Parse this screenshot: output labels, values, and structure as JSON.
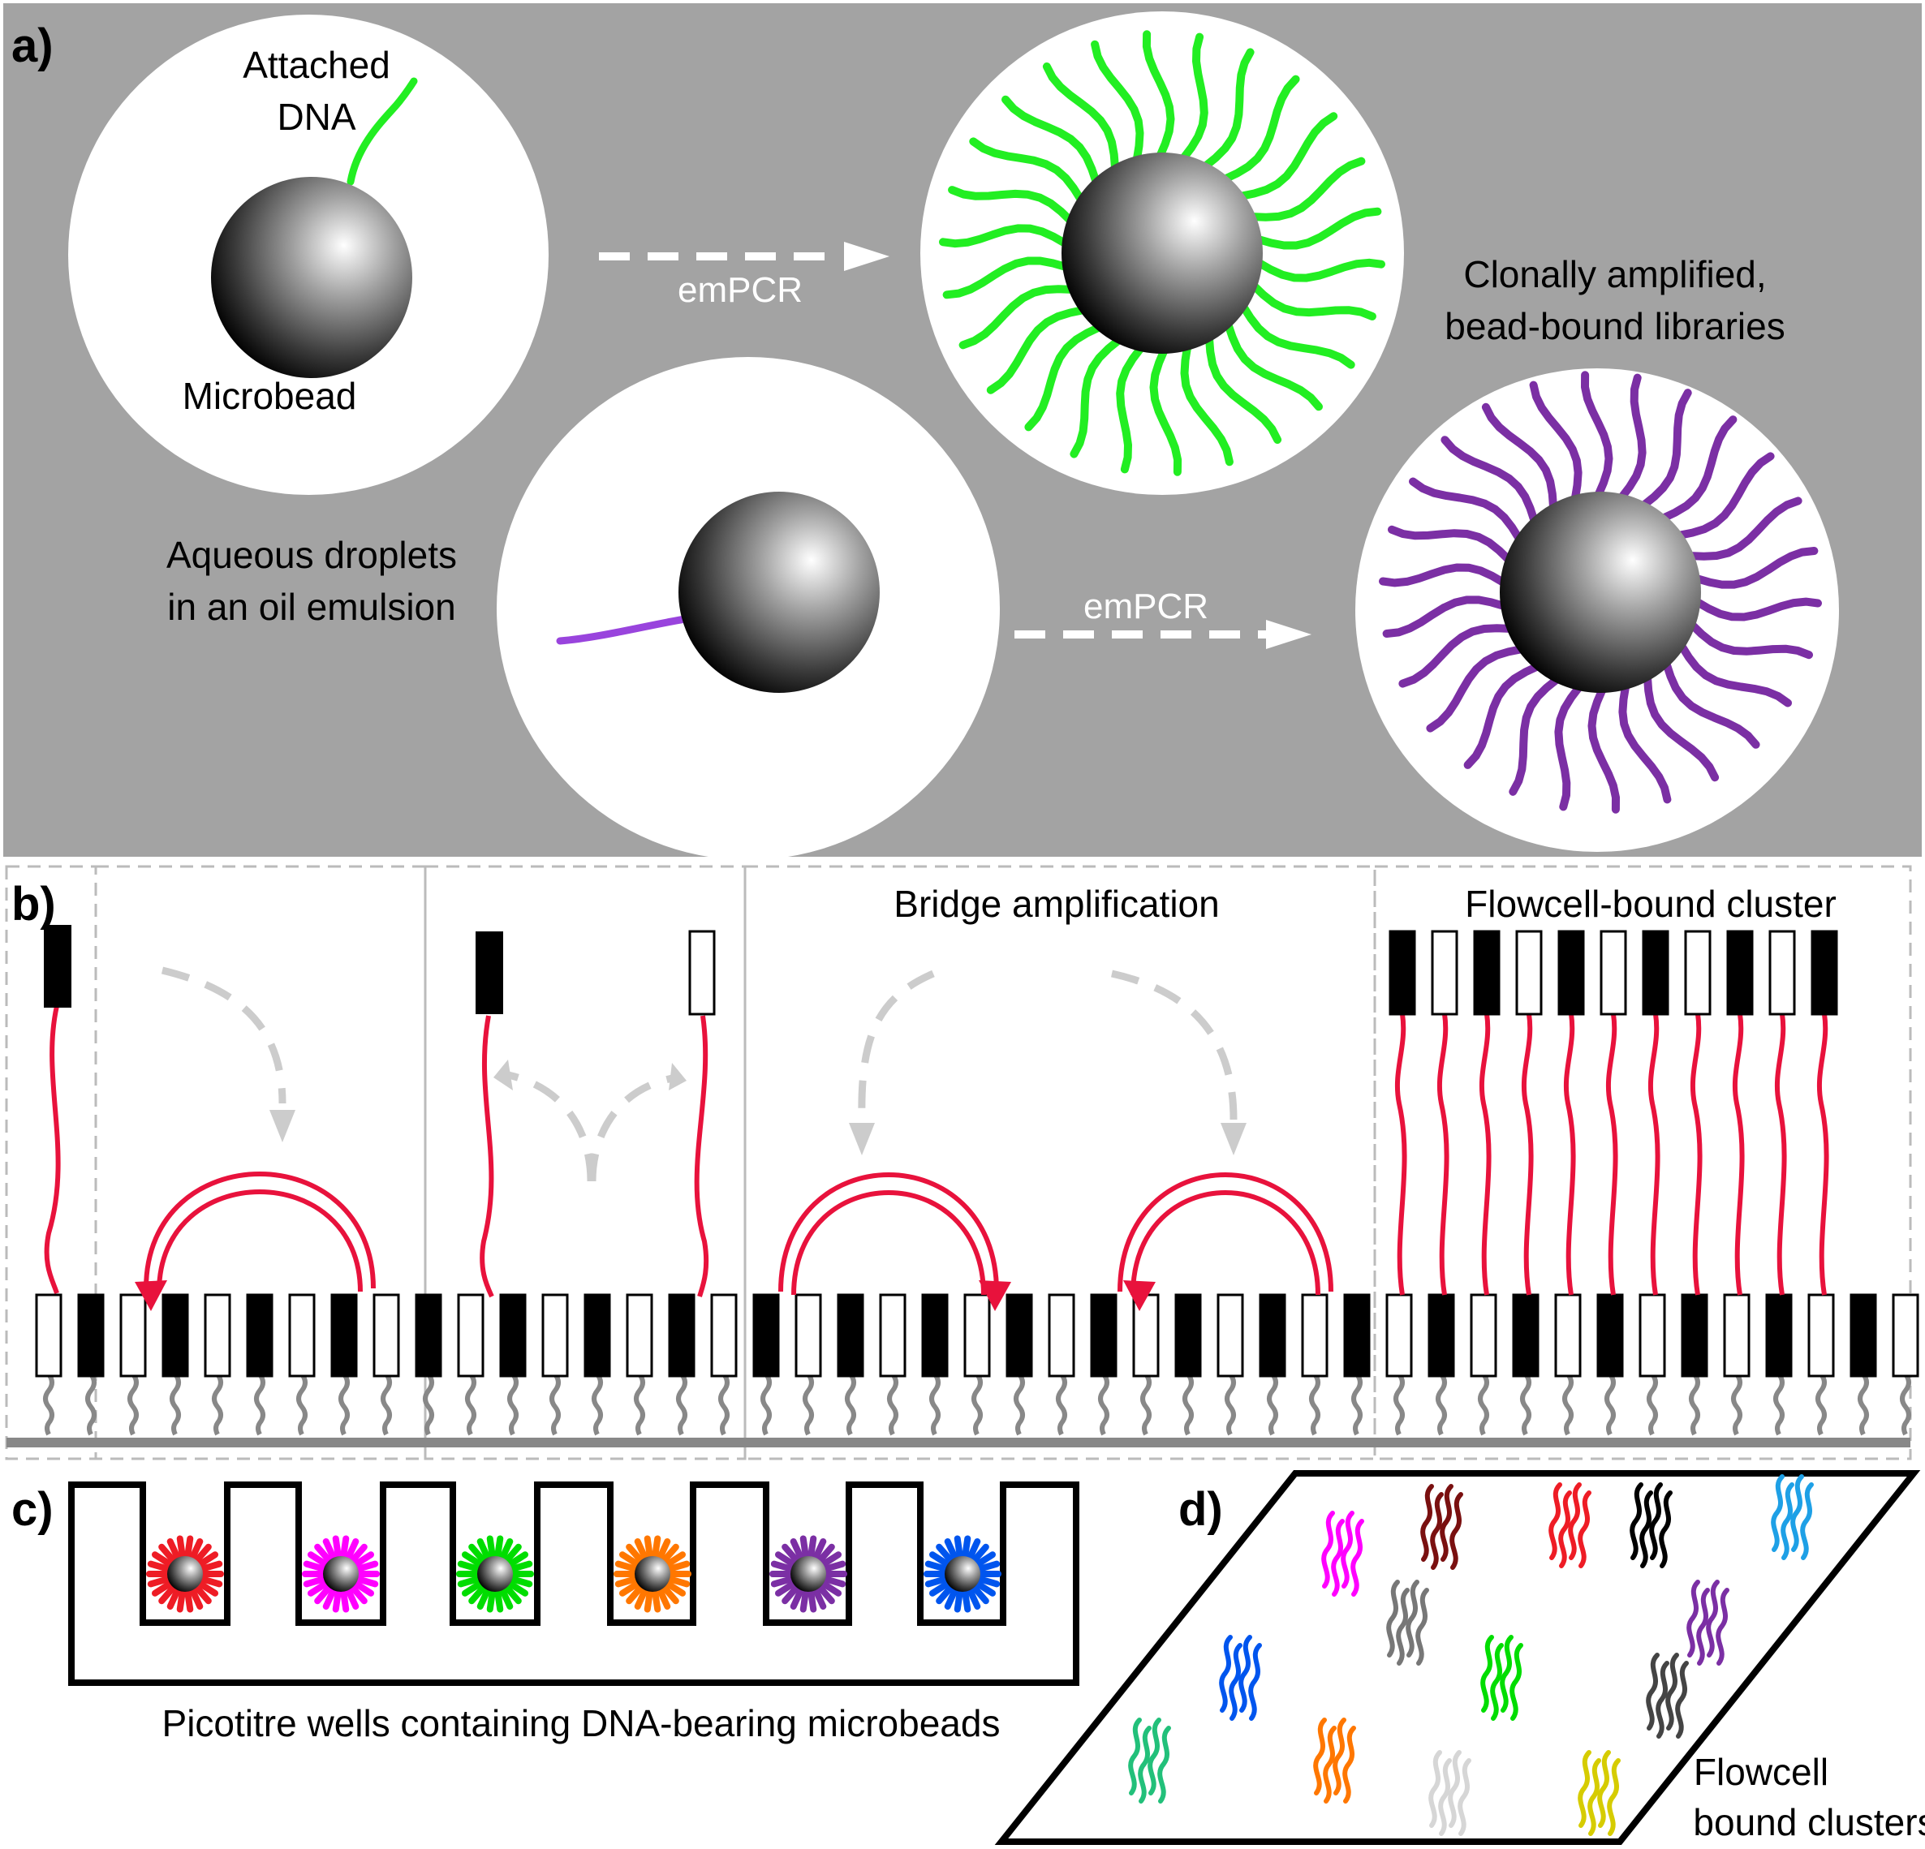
{
  "panels": {
    "a": {
      "letter": "a)",
      "attached_dna": [
        "Attached",
        "DNA"
      ],
      "microbead": "Microbead",
      "emulsion_label": [
        "Aqueous droplets",
        "in an oil emulsion"
      ],
      "empcr_top": "emPCR",
      "empcr_bottom": "emPCR",
      "result_label": [
        "Clonally amplified,",
        "bead-bound libraries"
      ]
    },
    "b": {
      "letter": "b)",
      "bridge": "Bridge amplification",
      "cluster": "Flowcell-bound cluster"
    },
    "c": {
      "letter": "c)",
      "caption": "Picotitre wells containing DNA-bearing microbeads",
      "well_colors": [
        "#ee1c25",
        "#ff00ff",
        "#00dd00",
        "#ff7700",
        "#7b2fa4",
        "#0055ee"
      ]
    },
    "d": {
      "letter": "d)",
      "caption": [
        "Flowcell",
        "bound clusters"
      ],
      "cluster_colors": [
        "#ff00ff",
        "#7a1010",
        "#ee1c25",
        "#000000",
        "#1ea0e6",
        "#777777",
        "#7b2fa4",
        "#0055ee",
        "#00dd00",
        "#444444",
        "#22c07a",
        "#ff7700",
        "#d6d6d6",
        "#d6cc00"
      ]
    }
  },
  "colors": {
    "panel_a_bg": "#a3a3a3",
    "dna_green": "#22ee22",
    "dna_purple": "#7b2fa4",
    "strand_red": "#e8123c",
    "arrow_grey": "#cccccc",
    "linker_grey": "#888888"
  }
}
